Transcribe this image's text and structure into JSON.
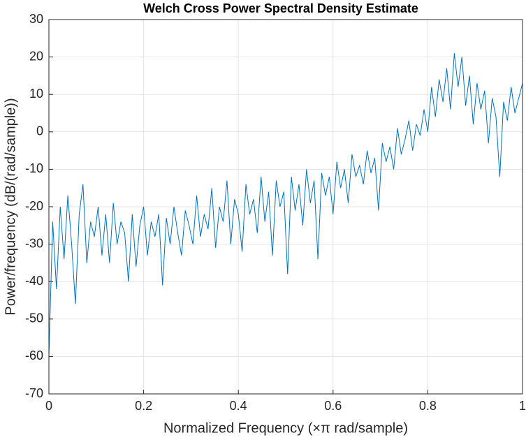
{
  "chart_data": {
    "type": "line",
    "title": "Welch Cross Power Spectral Density Estimate",
    "x_label": "Normalized Frequency  (×π rad/sample)",
    "y_label": "Power/frequency (dB/(rad/sample))",
    "xlim": [
      0,
      1
    ],
    "ylim": [
      -70,
      30
    ],
    "xticks": [
      0,
      0.2,
      0.4,
      0.6,
      0.8,
      1
    ],
    "yticks": [
      -70,
      -60,
      -50,
      -40,
      -30,
      -20,
      -10,
      0,
      10,
      20,
      30
    ],
    "grid": true,
    "series": [
      {
        "color": "#0072bd",
        "x": [
          0,
          0.008,
          0.016,
          0.024,
          0.032,
          0.04,
          0.048,
          0.056,
          0.064,
          0.072,
          0.08,
          0.088,
          0.096,
          0.104,
          0.112,
          0.12,
          0.128,
          0.136,
          0.144,
          0.152,
          0.16,
          0.168,
          0.176,
          0.184,
          0.192,
          0.2,
          0.208,
          0.216,
          0.224,
          0.232,
          0.24,
          0.248,
          0.256,
          0.264,
          0.272,
          0.28,
          0.288,
          0.296,
          0.304,
          0.312,
          0.32,
          0.328,
          0.336,
          0.344,
          0.352,
          0.36,
          0.368,
          0.376,
          0.384,
          0.392,
          0.4,
          0.408,
          0.416,
          0.424,
          0.432,
          0.44,
          0.448,
          0.456,
          0.464,
          0.472,
          0.48,
          0.488,
          0.496,
          0.504,
          0.512,
          0.52,
          0.528,
          0.536,
          0.544,
          0.552,
          0.56,
          0.568,
          0.576,
          0.584,
          0.592,
          0.6,
          0.608,
          0.616,
          0.624,
          0.632,
          0.64,
          0.648,
          0.656,
          0.664,
          0.672,
          0.68,
          0.688,
          0.696,
          0.704,
          0.712,
          0.72,
          0.728,
          0.736,
          0.744,
          0.752,
          0.76,
          0.768,
          0.776,
          0.784,
          0.792,
          0.8,
          0.808,
          0.816,
          0.824,
          0.832,
          0.84,
          0.848,
          0.856,
          0.864,
          0.872,
          0.88,
          0.888,
          0.896,
          0.904,
          0.912,
          0.92,
          0.928,
          0.936,
          0.944,
          0.952,
          0.96,
          0.968,
          0.976,
          0.984,
          0.992,
          1
        ],
        "values": [
          -60,
          -24,
          -42,
          -20,
          -34,
          -17,
          -30,
          -46,
          -22,
          -14,
          -35,
          -24,
          -28,
          -20,
          -33,
          -22,
          -35,
          -19,
          -30,
          -24,
          -27,
          -40,
          -22,
          -36,
          -25,
          -20,
          -33,
          -24,
          -28,
          -22,
          -41,
          -23,
          -30,
          -20,
          -27,
          -33,
          -21,
          -25,
          -30,
          -17,
          -28,
          -22,
          -26,
          -15,
          -31,
          -20,
          -24,
          -13,
          -30,
          -18,
          -22,
          -32,
          -14,
          -22,
          -18,
          -27,
          -12,
          -24,
          -16,
          -33,
          -13,
          -20,
          -16,
          -38,
          -12,
          -21,
          -14,
          -25,
          -10,
          -19,
          -13,
          -34,
          -11,
          -17,
          -12,
          -22,
          -8,
          -15,
          -10,
          -19,
          -6,
          -12,
          -9,
          -14,
          -5,
          -11,
          -7,
          -21,
          -3,
          -8,
          -4,
          -10,
          1,
          -6,
          -2,
          3,
          -5,
          2,
          -1,
          6,
          0,
          12,
          4,
          14,
          8,
          17,
          6,
          21,
          12,
          20,
          7,
          15,
          2,
          13,
          6,
          11,
          -3,
          9,
          4,
          -12,
          8,
          3,
          12,
          5,
          9,
          13
        ]
      }
    ]
  }
}
